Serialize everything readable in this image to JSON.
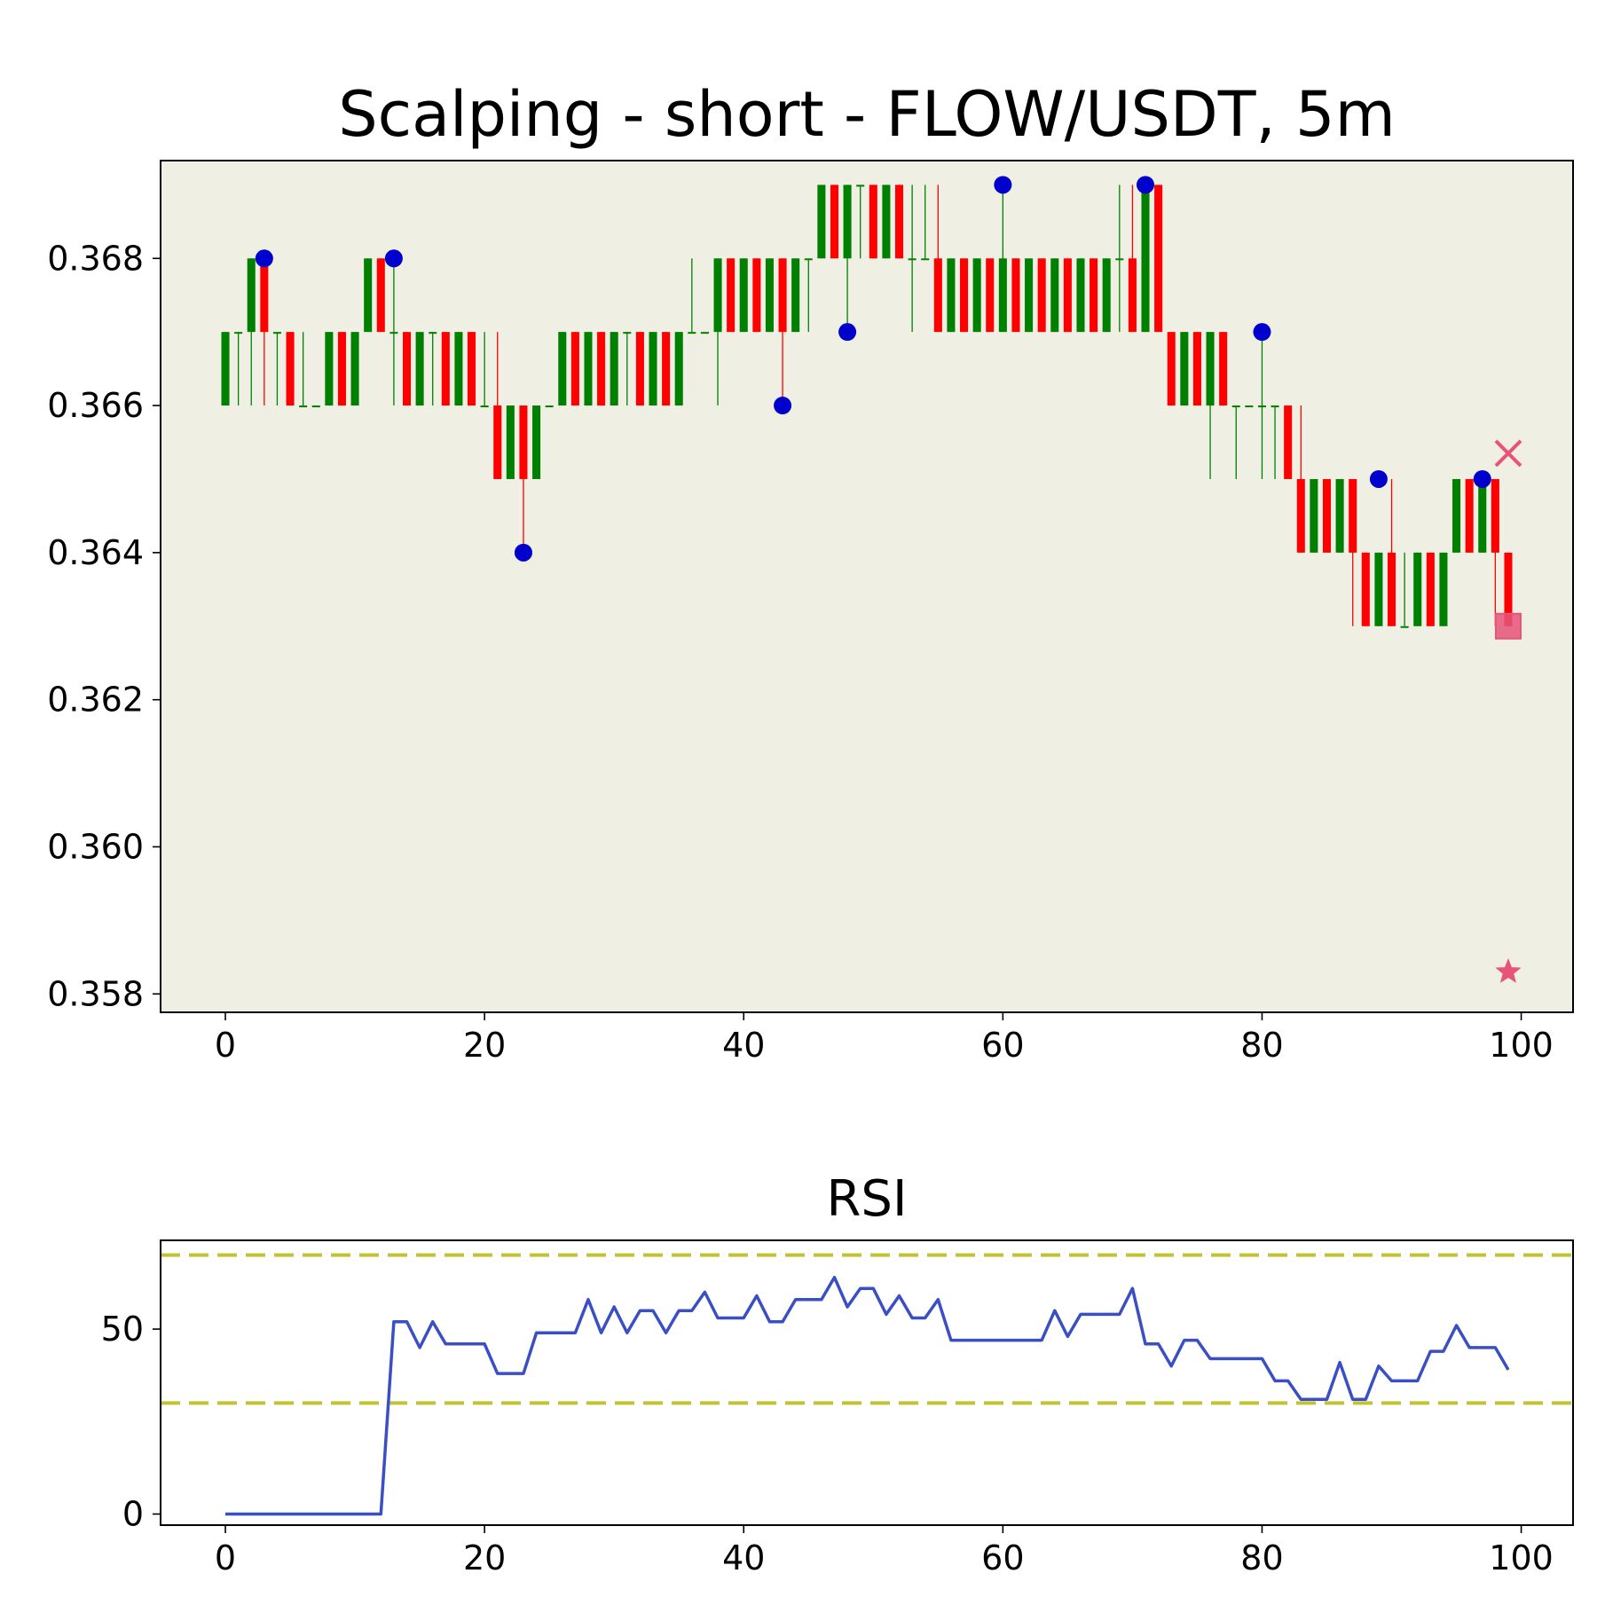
{
  "chart_data": [
    {
      "type": "candlestick",
      "title": "Scalping - short - FLOW/USDT, 5m",
      "xlabel": "",
      "ylabel": "",
      "xlim": [
        -5,
        104
      ],
      "ylim": [
        0.35775,
        0.36933
      ],
      "x_ticks": [
        "0",
        "20",
        "40",
        "60",
        "80",
        "100"
      ],
      "y_ticks": [
        "0.358",
        "0.360",
        "0.362",
        "0.364",
        "0.366",
        "0.368"
      ],
      "background": "#f0efe4",
      "colors": {
        "up": "#008000",
        "down": "#ff0000",
        "pivot": "#0000cc",
        "signal": "#e8537a"
      },
      "candles": [
        [
          0.366,
          0.367,
          0.366,
          0.367
        ],
        [
          0.367,
          0.367,
          0.366,
          0.367
        ],
        [
          0.367,
          0.368,
          0.366,
          0.368
        ],
        [
          0.368,
          0.368,
          0.366,
          0.367
        ],
        [
          0.367,
          0.367,
          0.366,
          0.367
        ],
        [
          0.367,
          0.367,
          0.366,
          0.366
        ],
        [
          0.366,
          0.367,
          0.366,
          0.366
        ],
        [
          0.366,
          0.366,
          0.366,
          0.366
        ],
        [
          0.366,
          0.367,
          0.366,
          0.367
        ],
        [
          0.367,
          0.367,
          0.366,
          0.366
        ],
        [
          0.366,
          0.367,
          0.366,
          0.367
        ],
        [
          0.367,
          0.368,
          0.367,
          0.368
        ],
        [
          0.368,
          0.368,
          0.367,
          0.367
        ],
        [
          0.367,
          0.368,
          0.366,
          0.367
        ],
        [
          0.367,
          0.367,
          0.366,
          0.366
        ],
        [
          0.366,
          0.367,
          0.366,
          0.367
        ],
        [
          0.367,
          0.367,
          0.366,
          0.367
        ],
        [
          0.367,
          0.367,
          0.366,
          0.366
        ],
        [
          0.366,
          0.367,
          0.366,
          0.367
        ],
        [
          0.367,
          0.367,
          0.366,
          0.366
        ],
        [
          0.366,
          0.367,
          0.366,
          0.366
        ],
        [
          0.366,
          0.367,
          0.365,
          0.365
        ],
        [
          0.365,
          0.366,
          0.365,
          0.366
        ],
        [
          0.366,
          0.366,
          0.364,
          0.365
        ],
        [
          0.365,
          0.366,
          0.365,
          0.366
        ],
        [
          0.366,
          0.366,
          0.366,
          0.366
        ],
        [
          0.366,
          0.367,
          0.366,
          0.367
        ],
        [
          0.367,
          0.367,
          0.366,
          0.366
        ],
        [
          0.366,
          0.367,
          0.366,
          0.367
        ],
        [
          0.367,
          0.367,
          0.366,
          0.366
        ],
        [
          0.366,
          0.367,
          0.366,
          0.367
        ],
        [
          0.367,
          0.367,
          0.366,
          0.367
        ],
        [
          0.367,
          0.367,
          0.366,
          0.366
        ],
        [
          0.366,
          0.367,
          0.366,
          0.367
        ],
        [
          0.367,
          0.367,
          0.366,
          0.366
        ],
        [
          0.366,
          0.367,
          0.366,
          0.367
        ],
        [
          0.367,
          0.368,
          0.367,
          0.367
        ],
        [
          0.367,
          0.367,
          0.367,
          0.367
        ],
        [
          0.367,
          0.368,
          0.366,
          0.368
        ],
        [
          0.368,
          0.368,
          0.367,
          0.367
        ],
        [
          0.367,
          0.368,
          0.367,
          0.368
        ],
        [
          0.368,
          0.368,
          0.367,
          0.367
        ],
        [
          0.367,
          0.368,
          0.367,
          0.368
        ],
        [
          0.368,
          0.368,
          0.366,
          0.367
        ],
        [
          0.367,
          0.368,
          0.367,
          0.368
        ],
        [
          0.368,
          0.368,
          0.367,
          0.368
        ],
        [
          0.368,
          0.369,
          0.368,
          0.369
        ],
        [
          0.369,
          0.369,
          0.368,
          0.368
        ],
        [
          0.368,
          0.369,
          0.367,
          0.369
        ],
        [
          0.369,
          0.369,
          0.368,
          0.369
        ],
        [
          0.369,
          0.369,
          0.368,
          0.368
        ],
        [
          0.368,
          0.369,
          0.368,
          0.369
        ],
        [
          0.369,
          0.369,
          0.368,
          0.368
        ],
        [
          0.368,
          0.369,
          0.367,
          0.368
        ],
        [
          0.368,
          0.369,
          0.368,
          0.368
        ],
        [
          0.368,
          0.369,
          0.367,
          0.367
        ],
        [
          0.367,
          0.368,
          0.367,
          0.368
        ],
        [
          0.368,
          0.368,
          0.367,
          0.367
        ],
        [
          0.367,
          0.368,
          0.367,
          0.368
        ],
        [
          0.368,
          0.368,
          0.367,
          0.367
        ],
        [
          0.367,
          0.369,
          0.367,
          0.368
        ],
        [
          0.368,
          0.368,
          0.367,
          0.367
        ],
        [
          0.367,
          0.368,
          0.367,
          0.368
        ],
        [
          0.368,
          0.368,
          0.367,
          0.367
        ],
        [
          0.367,
          0.368,
          0.367,
          0.368
        ],
        [
          0.368,
          0.368,
          0.367,
          0.367
        ],
        [
          0.367,
          0.368,
          0.367,
          0.368
        ],
        [
          0.368,
          0.368,
          0.367,
          0.367
        ],
        [
          0.367,
          0.368,
          0.367,
          0.368
        ],
        [
          0.368,
          0.369,
          0.367,
          0.368
        ],
        [
          0.368,
          0.369,
          0.367,
          0.367
        ],
        [
          0.367,
          0.369,
          0.367,
          0.369
        ],
        [
          0.369,
          0.369,
          0.367,
          0.367
        ],
        [
          0.367,
          0.367,
          0.366,
          0.366
        ],
        [
          0.366,
          0.367,
          0.366,
          0.367
        ],
        [
          0.367,
          0.367,
          0.366,
          0.366
        ],
        [
          0.366,
          0.367,
          0.365,
          0.367
        ],
        [
          0.367,
          0.367,
          0.366,
          0.366
        ],
        [
          0.366,
          0.366,
          0.365,
          0.366
        ],
        [
          0.366,
          0.366,
          0.366,
          0.366
        ],
        [
          0.366,
          0.367,
          0.365,
          0.366
        ],
        [
          0.366,
          0.366,
          0.365,
          0.366
        ],
        [
          0.366,
          0.366,
          0.365,
          0.365
        ],
        [
          0.365,
          0.366,
          0.364,
          0.364
        ],
        [
          0.364,
          0.365,
          0.364,
          0.365
        ],
        [
          0.365,
          0.365,
          0.364,
          0.364
        ],
        [
          0.364,
          0.365,
          0.364,
          0.365
        ],
        [
          0.365,
          0.365,
          0.363,
          0.364
        ],
        [
          0.364,
          0.364,
          0.363,
          0.363
        ],
        [
          0.363,
          0.364,
          0.363,
          0.364
        ],
        [
          0.364,
          0.365,
          0.363,
          0.363
        ],
        [
          0.363,
          0.364,
          0.363,
          0.363
        ],
        [
          0.363,
          0.364,
          0.363,
          0.364
        ],
        [
          0.364,
          0.364,
          0.363,
          0.363
        ],
        [
          0.363,
          0.364,
          0.363,
          0.364
        ],
        [
          0.364,
          0.365,
          0.364,
          0.365
        ],
        [
          0.365,
          0.365,
          0.364,
          0.364
        ],
        [
          0.364,
          0.365,
          0.364,
          0.365
        ],
        [
          0.365,
          0.365,
          0.363,
          0.364
        ],
        [
          0.364,
          0.364,
          0.363,
          0.363
        ]
      ],
      "pivots": [
        [
          3,
          0.368
        ],
        [
          13,
          0.368
        ],
        [
          23,
          0.364
        ],
        [
          43,
          0.366
        ],
        [
          48,
          0.367
        ],
        [
          60,
          0.369
        ],
        [
          71,
          0.369
        ],
        [
          80,
          0.367
        ],
        [
          89,
          0.365
        ],
        [
          97,
          0.365
        ]
      ],
      "markers": [
        {
          "shape": "x",
          "x": 99,
          "y": 0.36535
        },
        {
          "shape": "square",
          "x": 99,
          "y": 0.363
        },
        {
          "shape": "star",
          "x": 99,
          "y": 0.3583
        }
      ]
    },
    {
      "type": "line",
      "title": "RSI",
      "xlabel": "",
      "ylabel": "",
      "xlim": [
        -5,
        104
      ],
      "ylim": [
        -3,
        74
      ],
      "x_ticks": [
        "0",
        "20",
        "40",
        "60",
        "80",
        "100"
      ],
      "y_ticks": [
        "0",
        "50"
      ],
      "hlines": [
        70,
        30
      ],
      "colors": {
        "line": "#3a4fc4",
        "hlines": "#c2c232"
      },
      "series": [
        {
          "values": [
            0,
            0,
            0,
            0,
            0,
            0,
            0,
            0,
            0,
            0,
            0,
            0,
            0,
            52,
            52,
            45,
            52,
            46,
            46,
            46,
            46,
            38,
            38,
            38,
            49,
            49,
            49,
            49,
            58,
            49,
            56,
            49,
            55,
            55,
            49,
            55,
            55,
            60,
            53,
            53,
            53,
            59,
            52,
            52,
            58,
            58,
            58,
            64,
            56,
            61,
            61,
            54,
            59,
            53,
            53,
            58,
            47,
            47,
            47,
            47,
            47,
            47,
            47,
            47,
            55,
            48,
            54,
            54,
            54,
            54,
            61,
            46,
            46,
            40,
            47,
            47,
            42,
            42,
            42,
            42,
            42,
            36,
            36,
            31,
            31,
            31,
            41,
            31,
            31,
            40,
            36,
            36,
            36,
            44,
            44,
            51,
            45,
            45,
            45,
            39
          ]
        }
      ]
    }
  ]
}
